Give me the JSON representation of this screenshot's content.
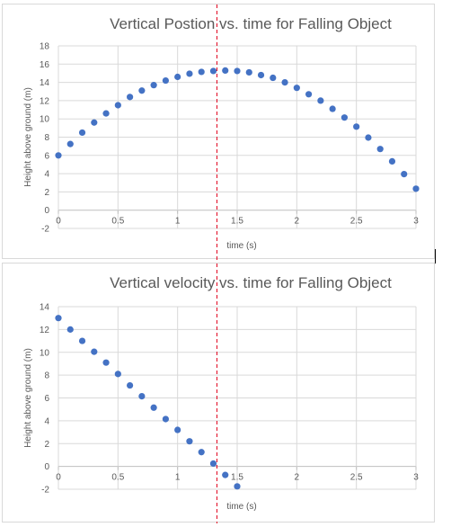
{
  "chart_data": [
    {
      "type": "scatter",
      "title": "Vertical Postion vs. time for Falling Object",
      "xlabel": "time (s)",
      "ylabel": "Height above ground (m)",
      "xlim": [
        0,
        3
      ],
      "ylim": [
        -2,
        18
      ],
      "xticks": [
        0,
        0.5,
        1,
        1.5,
        2,
        2.5,
        3
      ],
      "yticks": [
        -2,
        0,
        2,
        4,
        6,
        8,
        10,
        12,
        14,
        16,
        18
      ],
      "grid": true,
      "marker_color": "#4472c4",
      "vertical_line_x": 1.33,
      "vertical_line_color": "#e0001b",
      "x": [
        0,
        0.1,
        0.2,
        0.3,
        0.4,
        0.5,
        0.6,
        0.7,
        0.8,
        0.9,
        1.0,
        1.1,
        1.2,
        1.3,
        1.4,
        1.5,
        1.6,
        1.7,
        1.8,
        1.9,
        2.0,
        2.1,
        2.2,
        2.3,
        2.4,
        2.5,
        2.6,
        2.7,
        2.8,
        2.9,
        3.0
      ],
      "y": [
        6.0,
        7.25,
        8.5,
        9.6,
        10.6,
        11.5,
        12.4,
        13.1,
        13.7,
        14.2,
        14.6,
        14.95,
        15.15,
        15.25,
        15.3,
        15.25,
        15.1,
        14.8,
        14.5,
        14.0,
        13.4,
        12.7,
        12.0,
        11.1,
        10.15,
        9.15,
        7.95,
        6.7,
        5.35,
        3.95,
        2.35
      ]
    },
    {
      "type": "scatter",
      "title": "Vertical velocity vs. time for Falling Object",
      "xlabel": "time (s)",
      "ylabel": "Height above ground (m)",
      "xlim": [
        0,
        3
      ],
      "ylim": [
        -2,
        14
      ],
      "xticks": [
        0,
        0.5,
        1,
        1.5,
        2,
        2.5,
        3
      ],
      "yticks": [
        -2,
        0,
        2,
        4,
        6,
        8,
        10,
        12,
        14
      ],
      "grid": true,
      "marker_color": "#4472c4",
      "vertical_line_x": 1.33,
      "vertical_line_color": "#e0001b",
      "x": [
        0,
        0.1,
        0.2,
        0.3,
        0.4,
        0.5,
        0.6,
        0.7,
        0.8,
        0.9,
        1.0,
        1.1,
        1.2,
        1.3,
        1.4,
        1.5
      ],
      "y": [
        13.0,
        12.0,
        11.0,
        10.05,
        9.1,
        8.1,
        7.1,
        6.15,
        5.15,
        4.15,
        3.2,
        2.2,
        1.25,
        0.25,
        -0.75,
        -1.75
      ]
    }
  ]
}
